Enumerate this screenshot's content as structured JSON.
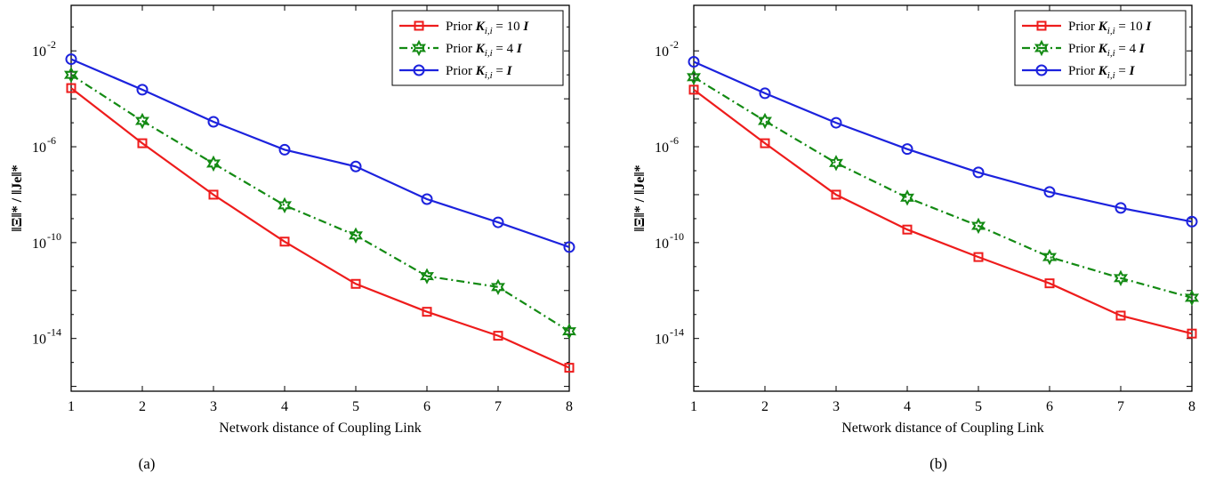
{
  "colors": {
    "red": "#ee1c1c",
    "green": "#138a13",
    "blue": "#1c22dd",
    "axis": "#000000"
  },
  "chart_data": [
    {
      "type": "line",
      "panel_label": "(a)",
      "xlabel": "Network distance of Coupling Link",
      "ylabel": "‖Ξ‖* / ‖Je‖*",
      "yscale": "log",
      "xlim": [
        1,
        8
      ],
      "ylim_exp": [
        -16.2,
        -0.1
      ],
      "x": [
        1,
        2,
        3,
        4,
        5,
        6,
        7,
        8
      ],
      "x_ticks": [
        "1",
        "2",
        "3",
        "4",
        "5",
        "6",
        "7",
        "8"
      ],
      "y_ticks": [
        {
          "exp": -2,
          "label": "10-2"
        },
        {
          "exp": -6,
          "label": "10-6"
        },
        {
          "exp": -10,
          "label": "10-10"
        },
        {
          "exp": -14,
          "label": "10-14"
        }
      ],
      "grid": false,
      "legend_position": "top-right",
      "series": [
        {
          "name": "Prior K_{i,i} = 10 I",
          "legend_label": [
            "Prior ",
            "K",
            "i,i",
            " = 10 ",
            "I"
          ],
          "color": "red",
          "marker": "square",
          "dash": "solid",
          "values": [
            0.00028,
            1.4e-06,
            1e-08,
            1.1e-10,
            1.9e-12,
            1.3e-13,
            1.3e-14,
            6e-16
          ]
        },
        {
          "name": "Prior K_{i,i} = 4 I",
          "legend_label": [
            "Prior ",
            "K",
            "i,i",
            " = 4 ",
            "I"
          ],
          "color": "green",
          "marker": "star",
          "dash": "dashdot",
          "values": [
            0.001,
            1.2e-05,
            2e-07,
            3.6e-09,
            2e-10,
            4e-12,
            1.4e-12,
            2e-14
          ]
        },
        {
          "name": "Prior K_{i,i} = I",
          "legend_label": [
            "Prior ",
            "K",
            "i,i",
            " = ",
            "I"
          ],
          "color": "blue",
          "marker": "circle",
          "dash": "solid",
          "values": [
            0.0045,
            0.00024,
            1.1e-05,
            7.5e-07,
            1.5e-07,
            6.5e-09,
            7e-10,
            6.5e-11
          ]
        }
      ]
    },
    {
      "type": "line",
      "panel_label": "(b)",
      "xlabel": "Network distance of Coupling Link",
      "ylabel": "‖Ξ‖* / ‖Je‖*",
      "yscale": "log",
      "xlim": [
        1,
        8
      ],
      "ylim_exp": [
        -16.2,
        -0.1
      ],
      "x": [
        1,
        2,
        3,
        4,
        5,
        6,
        7,
        8
      ],
      "x_ticks": [
        "1",
        "2",
        "3",
        "4",
        "5",
        "6",
        "7",
        "8"
      ],
      "y_ticks": [
        {
          "exp": -2,
          "label": "10-2"
        },
        {
          "exp": -6,
          "label": "10-6"
        },
        {
          "exp": -10,
          "label": "10-10"
        },
        {
          "exp": -14,
          "label": "10-14"
        }
      ],
      "grid": false,
      "legend_position": "top-right",
      "series": [
        {
          "name": "Prior K_{i,i} = 10 I",
          "legend_label": [
            "Prior ",
            "K",
            "i,i",
            " = 10 ",
            "I"
          ],
          "color": "red",
          "marker": "square",
          "dash": "solid",
          "values": [
            0.00024,
            1.4e-06,
            1e-08,
            3.5e-10,
            2.5e-11,
            2e-12,
            9e-14,
            1.6e-14
          ]
        },
        {
          "name": "Prior K_{i,i} = 4 I",
          "legend_label": [
            "Prior ",
            "K",
            "i,i",
            " = 4 ",
            "I"
          ],
          "color": "green",
          "marker": "star",
          "dash": "dashdot",
          "values": [
            0.0008,
            1.2e-05,
            2.1e-07,
            7.5e-09,
            5e-10,
            2.5e-11,
            3.3e-12,
            5e-13
          ]
        },
        {
          "name": "Prior K_{i,i} = I",
          "legend_label": [
            "Prior ",
            "K",
            "i,i",
            " = ",
            "I"
          ],
          "color": "blue",
          "marker": "circle",
          "dash": "solid",
          "values": [
            0.0035,
            0.00017,
            1e-05,
            8e-07,
            8.5e-08,
            1.3e-08,
            2.8e-09,
            7.5e-10
          ]
        }
      ]
    }
  ]
}
